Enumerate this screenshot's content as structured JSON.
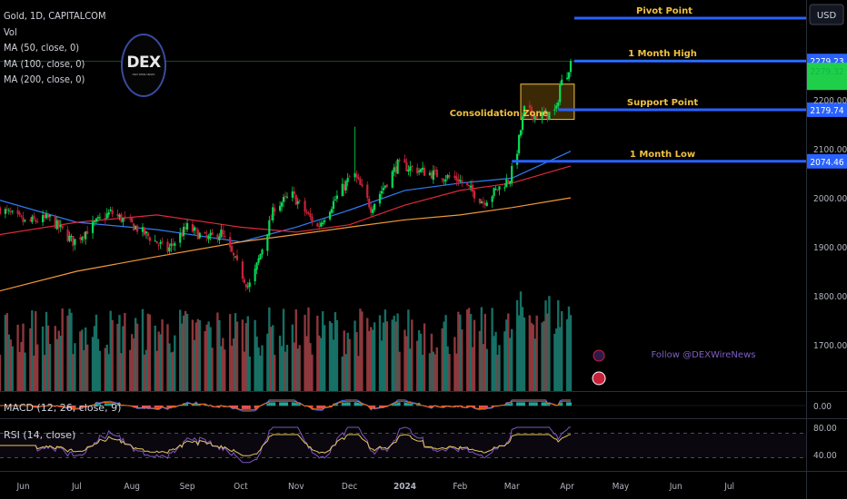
{
  "legend": {
    "symbol_line": "Gold, 1D, CAPITALCOM",
    "vol": "Vol",
    "ma50": "MA (50, close, 0)",
    "ma100": "MA (100, close, 0)",
    "ma200": "MA (200, close, 0)"
  },
  "logo": {
    "text": "DEX",
    "subtext": "DEX WIRE NEWS"
  },
  "macd_label": "MACD (12, 26, close, 9)",
  "rsi_label": "RSI (14, close)",
  "currency_button": "USD",
  "watermark": "Follow @DEXWireNews",
  "colors": {
    "up": "#08d957",
    "down": "#c8223a",
    "vol_up": "#1a7a6e",
    "vol_down": "#9a3d43",
    "ma50": "#2f7df6",
    "ma100": "#e0293b",
    "ma200": "#f39a37",
    "level_line": "#2962ff",
    "annotation": "#f0c040",
    "consolidation_fill": "#6b4a0a",
    "price_label_green": "#1fcf4a",
    "rsi": "#e5c65a",
    "macd": "#2962ff",
    "macd_signal": "#ff6d00",
    "watermark": "#7e5ec2"
  },
  "chart_data": {
    "type": "candlestick",
    "title": "Gold, 1D, CAPITALCOM",
    "currency": "USD",
    "yticks": [
      1700.0,
      1800.0,
      1900.0,
      2000.0,
      2100.0,
      2200.0
    ],
    "ylim": [
      1610,
      2330
    ],
    "xtick_labels": [
      "Jun",
      "Jul",
      "Aug",
      "Sep",
      "Oct",
      "Nov",
      "Dec",
      "2024",
      "Feb",
      "Mar",
      "Apr",
      "May",
      "Jun",
      "Jul"
    ],
    "xlim": [
      "2023-05-19",
      "2024-08-13"
    ],
    "last_date": "2024-04-03",
    "close_anchors": [
      [
        "2023-05-19",
        1978
      ],
      [
        "2023-06-02",
        1950
      ],
      [
        "2023-06-16",
        1958
      ],
      [
        "2023-06-29",
        1910
      ],
      [
        "2023-07-14",
        1955
      ],
      [
        "2023-07-20",
        1970
      ],
      [
        "2023-08-01",
        1945
      ],
      [
        "2023-08-21",
        1893
      ],
      [
        "2023-09-01",
        1940
      ],
      [
        "2023-09-12",
        1915
      ],
      [
        "2023-09-20",
        1928
      ],
      [
        "2023-10-05",
        1820
      ],
      [
        "2023-10-07",
        1825
      ],
      [
        "2023-10-20",
        1982
      ],
      [
        "2023-10-30",
        2005
      ],
      [
        "2023-11-13",
        1940
      ],
      [
        "2023-11-20",
        1980
      ],
      [
        "2023-12-01",
        2040
      ],
      [
        "2023-12-04",
        2045
      ],
      [
        "2023-12-13",
        1980
      ],
      [
        "2023-12-28",
        2068
      ],
      [
        "2024-01-15",
        2050
      ],
      [
        "2024-01-31",
        2038
      ],
      [
        "2024-02-14",
        1992
      ],
      [
        "2024-02-29",
        2040
      ],
      [
        "2024-03-04",
        2098
      ],
      [
        "2024-03-08",
        2180
      ],
      [
        "2024-03-14",
        2168
      ],
      [
        "2024-03-21",
        2170
      ],
      [
        "2024-03-26",
        2178
      ],
      [
        "2024-03-28",
        2230
      ],
      [
        "2024-04-01",
        2255
      ],
      [
        "2024-04-03",
        2279
      ]
    ],
    "series": [
      {
        "name": "MA (50, close, 0)",
        "points": [
          [
            "2023-05-19",
            1995
          ],
          [
            "2023-07-01",
            1950
          ],
          [
            "2023-08-15",
            1935
          ],
          [
            "2023-10-01",
            1910
          ],
          [
            "2023-11-01",
            1940
          ],
          [
            "2023-12-01",
            1975
          ],
          [
            "2024-01-01",
            2015
          ],
          [
            "2024-02-01",
            2030
          ],
          [
            "2024-03-01",
            2040
          ],
          [
            "2024-04-03",
            2095
          ]
        ]
      },
      {
        "name": "MA (100, close, 0)",
        "points": [
          [
            "2023-05-19",
            1925
          ],
          [
            "2023-07-01",
            1950
          ],
          [
            "2023-08-15",
            1965
          ],
          [
            "2023-10-01",
            1940
          ],
          [
            "2023-11-01",
            1930
          ],
          [
            "2023-12-01",
            1945
          ],
          [
            "2024-01-01",
            1985
          ],
          [
            "2024-02-01",
            2015
          ],
          [
            "2024-03-01",
            2030
          ],
          [
            "2024-04-03",
            2065
          ]
        ]
      },
      {
        "name": "MA (200, close, 0)",
        "points": [
          [
            "2023-05-19",
            1810
          ],
          [
            "2023-07-01",
            1850
          ],
          [
            "2023-08-15",
            1880
          ],
          [
            "2023-10-01",
            1910
          ],
          [
            "2023-11-01",
            1925
          ],
          [
            "2023-12-01",
            1940
          ],
          [
            "2024-01-01",
            1955
          ],
          [
            "2024-02-01",
            1965
          ],
          [
            "2024-03-01",
            1980
          ],
          [
            "2024-04-03",
            2000
          ]
        ]
      }
    ],
    "levels": [
      {
        "label": "Pivot Point",
        "price": 2335,
        "price_tag": ""
      },
      {
        "label": "1 Month High",
        "price": 2279.23,
        "price_tag": "2279.23"
      },
      {
        "label": "Support Point",
        "price": 2179.74,
        "price_tag": "2179.74"
      },
      {
        "label": "1 Month Low",
        "price": 2074.46,
        "price_tag": "2074.46"
      }
    ],
    "current_price_tag": "2279.32",
    "consolidation_zone": {
      "label": "Consolidation Zone",
      "from": "2024-03-06",
      "to": "2024-04-05",
      "low": 2160,
      "high": 2232
    },
    "volume": {
      "dates_from": "2023-05-19",
      "note": "relative bar heights",
      "ylim": [
        0,
        1
      ]
    },
    "macd": {
      "label": "MACD (12, 26, close, 9)",
      "ytick": "0.00"
    },
    "rsi": {
      "label": "RSI (14, close)",
      "yticks": [
        "80.00",
        "40.00"
      ],
      "upper": 70,
      "lower": 30,
      "last": 78
    }
  }
}
